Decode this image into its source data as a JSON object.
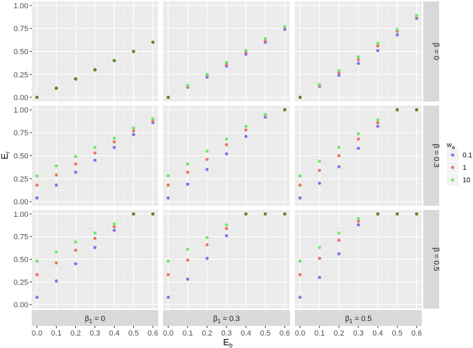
{
  "chart_data": {
    "type": "scatter",
    "xlabel": "E_b",
    "ylabel": "E_r",
    "xlim": [
      0,
      0.6
    ],
    "ylim": [
      0,
      1
    ],
    "x_ticks": [
      "0.0",
      "0.1",
      "0.2",
      "0.3",
      "0.4",
      "0.5",
      "0.6"
    ],
    "y_ticks": [
      "0.00",
      "0.25",
      "0.50",
      "0.75",
      "1.00"
    ],
    "x": [
      0,
      0.1,
      0.2,
      0.3,
      0.4,
      0.5,
      0.6
    ],
    "legend": {
      "title_main": "w",
      "title_sub": "a",
      "position": "right",
      "entries": [
        {
          "label": "0.1",
          "color": "#7b72f2"
        },
        {
          "label": "1",
          "color": "#f07167"
        },
        {
          "label": "10",
          "color": "#6ee86a"
        }
      ]
    },
    "overlap_color": "#5a8a2a",
    "col_strips": [
      {
        "main": "β",
        "sub": "1",
        "rest": " = 0"
      },
      {
        "main": "β",
        "sub": "1",
        "rest": " = 0.3"
      },
      {
        "main": "β",
        "sub": "1",
        "rest": " = 0.5"
      }
    ],
    "row_strips": [
      "β = 0",
      "β = 0.3",
      "β = 0.5"
    ],
    "panels": [
      {
        "row": 0,
        "col": 0,
        "series": [
          {
            "name": "0.1",
            "values": [
              0,
              0.1,
              0.2,
              0.3,
              0.4,
              0.5,
              0.6
            ]
          },
          {
            "name": "1",
            "values": [
              0,
              0.1,
              0.2,
              0.3,
              0.4,
              0.5,
              0.6
            ]
          },
          {
            "name": "10",
            "values": [
              0,
              0.1,
              0.2,
              0.3,
              0.4,
              0.5,
              0.6
            ]
          }
        ]
      },
      {
        "row": 0,
        "col": 1,
        "series": [
          {
            "name": "0.1",
            "values": [
              0,
              0.11,
              0.22,
              0.34,
              0.47,
              0.6,
              0.74
            ]
          },
          {
            "name": "1",
            "values": [
              0,
              0.12,
              0.24,
              0.36,
              0.49,
              0.62,
              0.76
            ]
          },
          {
            "name": "10",
            "values": [
              0,
              0.13,
              0.25,
              0.38,
              0.51,
              0.64,
              0.77
            ]
          }
        ]
      },
      {
        "row": 0,
        "col": 2,
        "series": [
          {
            "name": "0.1",
            "values": [
              0,
              0.12,
              0.24,
              0.37,
              0.51,
              0.68,
              0.86
            ]
          },
          {
            "name": "1",
            "values": [
              0,
              0.13,
              0.27,
              0.41,
              0.56,
              0.72,
              0.88
            ]
          },
          {
            "name": "10",
            "values": [
              0,
              0.14,
              0.29,
              0.44,
              0.59,
              0.74,
              0.89
            ]
          }
        ]
      },
      {
        "row": 1,
        "col": 0,
        "series": [
          {
            "name": "0.1",
            "values": [
              0.04,
              0.18,
              0.32,
              0.45,
              0.59,
              0.73,
              0.86
            ]
          },
          {
            "name": "1",
            "values": [
              0.18,
              0.29,
              0.41,
              0.53,
              0.65,
              0.77,
              0.88
            ]
          },
          {
            "name": "10",
            "values": [
              0.28,
              0.39,
              0.49,
              0.59,
              0.69,
              0.8,
              0.9
            ]
          }
        ]
      },
      {
        "row": 1,
        "col": 1,
        "series": [
          {
            "name": "0.1",
            "values": [
              0.04,
              0.19,
              0.35,
              0.52,
              0.71,
              0.92,
              1.0
            ]
          },
          {
            "name": "1",
            "values": [
              0.18,
              0.32,
              0.46,
              0.62,
              0.78,
              0.94,
              1.0
            ]
          },
          {
            "name": "10",
            "values": [
              0.28,
              0.41,
              0.55,
              0.68,
              0.82,
              0.95,
              1.0
            ]
          }
        ]
      },
      {
        "row": 1,
        "col": 2,
        "series": [
          {
            "name": "0.1",
            "values": [
              0.04,
              0.2,
              0.38,
              0.58,
              0.82,
              1.0,
              1.0
            ]
          },
          {
            "name": "1",
            "values": [
              0.18,
              0.34,
              0.5,
              0.68,
              0.86,
              1.0,
              1.0
            ]
          },
          {
            "name": "10",
            "values": [
              0.28,
              0.44,
              0.59,
              0.74,
              0.89,
              1.0,
              1.0
            ]
          }
        ]
      },
      {
        "row": 2,
        "col": 0,
        "series": [
          {
            "name": "0.1",
            "values": [
              0.08,
              0.26,
              0.45,
              0.63,
              0.82,
              1.0,
              1.0
            ]
          },
          {
            "name": "1",
            "values": [
              0.33,
              0.46,
              0.6,
              0.73,
              0.86,
              1.0,
              1.0
            ]
          },
          {
            "name": "10",
            "values": [
              0.48,
              0.58,
              0.69,
              0.79,
              0.89,
              1.0,
              1.0
            ]
          }
        ]
      },
      {
        "row": 2,
        "col": 1,
        "series": [
          {
            "name": "0.1",
            "values": [
              0.08,
              0.28,
              0.51,
              0.76,
              1.0,
              1.0,
              1.0
            ]
          },
          {
            "name": "1",
            "values": [
              0.33,
              0.49,
              0.66,
              0.84,
              1.0,
              1.0,
              1.0
            ]
          },
          {
            "name": "10",
            "values": [
              0.48,
              0.61,
              0.74,
              0.88,
              1.0,
              1.0,
              1.0
            ]
          }
        ]
      },
      {
        "row": 2,
        "col": 2,
        "series": [
          {
            "name": "0.1",
            "values": [
              0.08,
              0.3,
              0.56,
              0.88,
              1.0,
              1.0,
              1.0
            ]
          },
          {
            "name": "1",
            "values": [
              0.33,
              0.51,
              0.71,
              0.92,
              1.0,
              1.0,
              1.0
            ]
          },
          {
            "name": "10",
            "values": [
              0.48,
              0.63,
              0.79,
              0.95,
              1.0,
              1.0,
              1.0
            ]
          }
        ]
      }
    ]
  }
}
